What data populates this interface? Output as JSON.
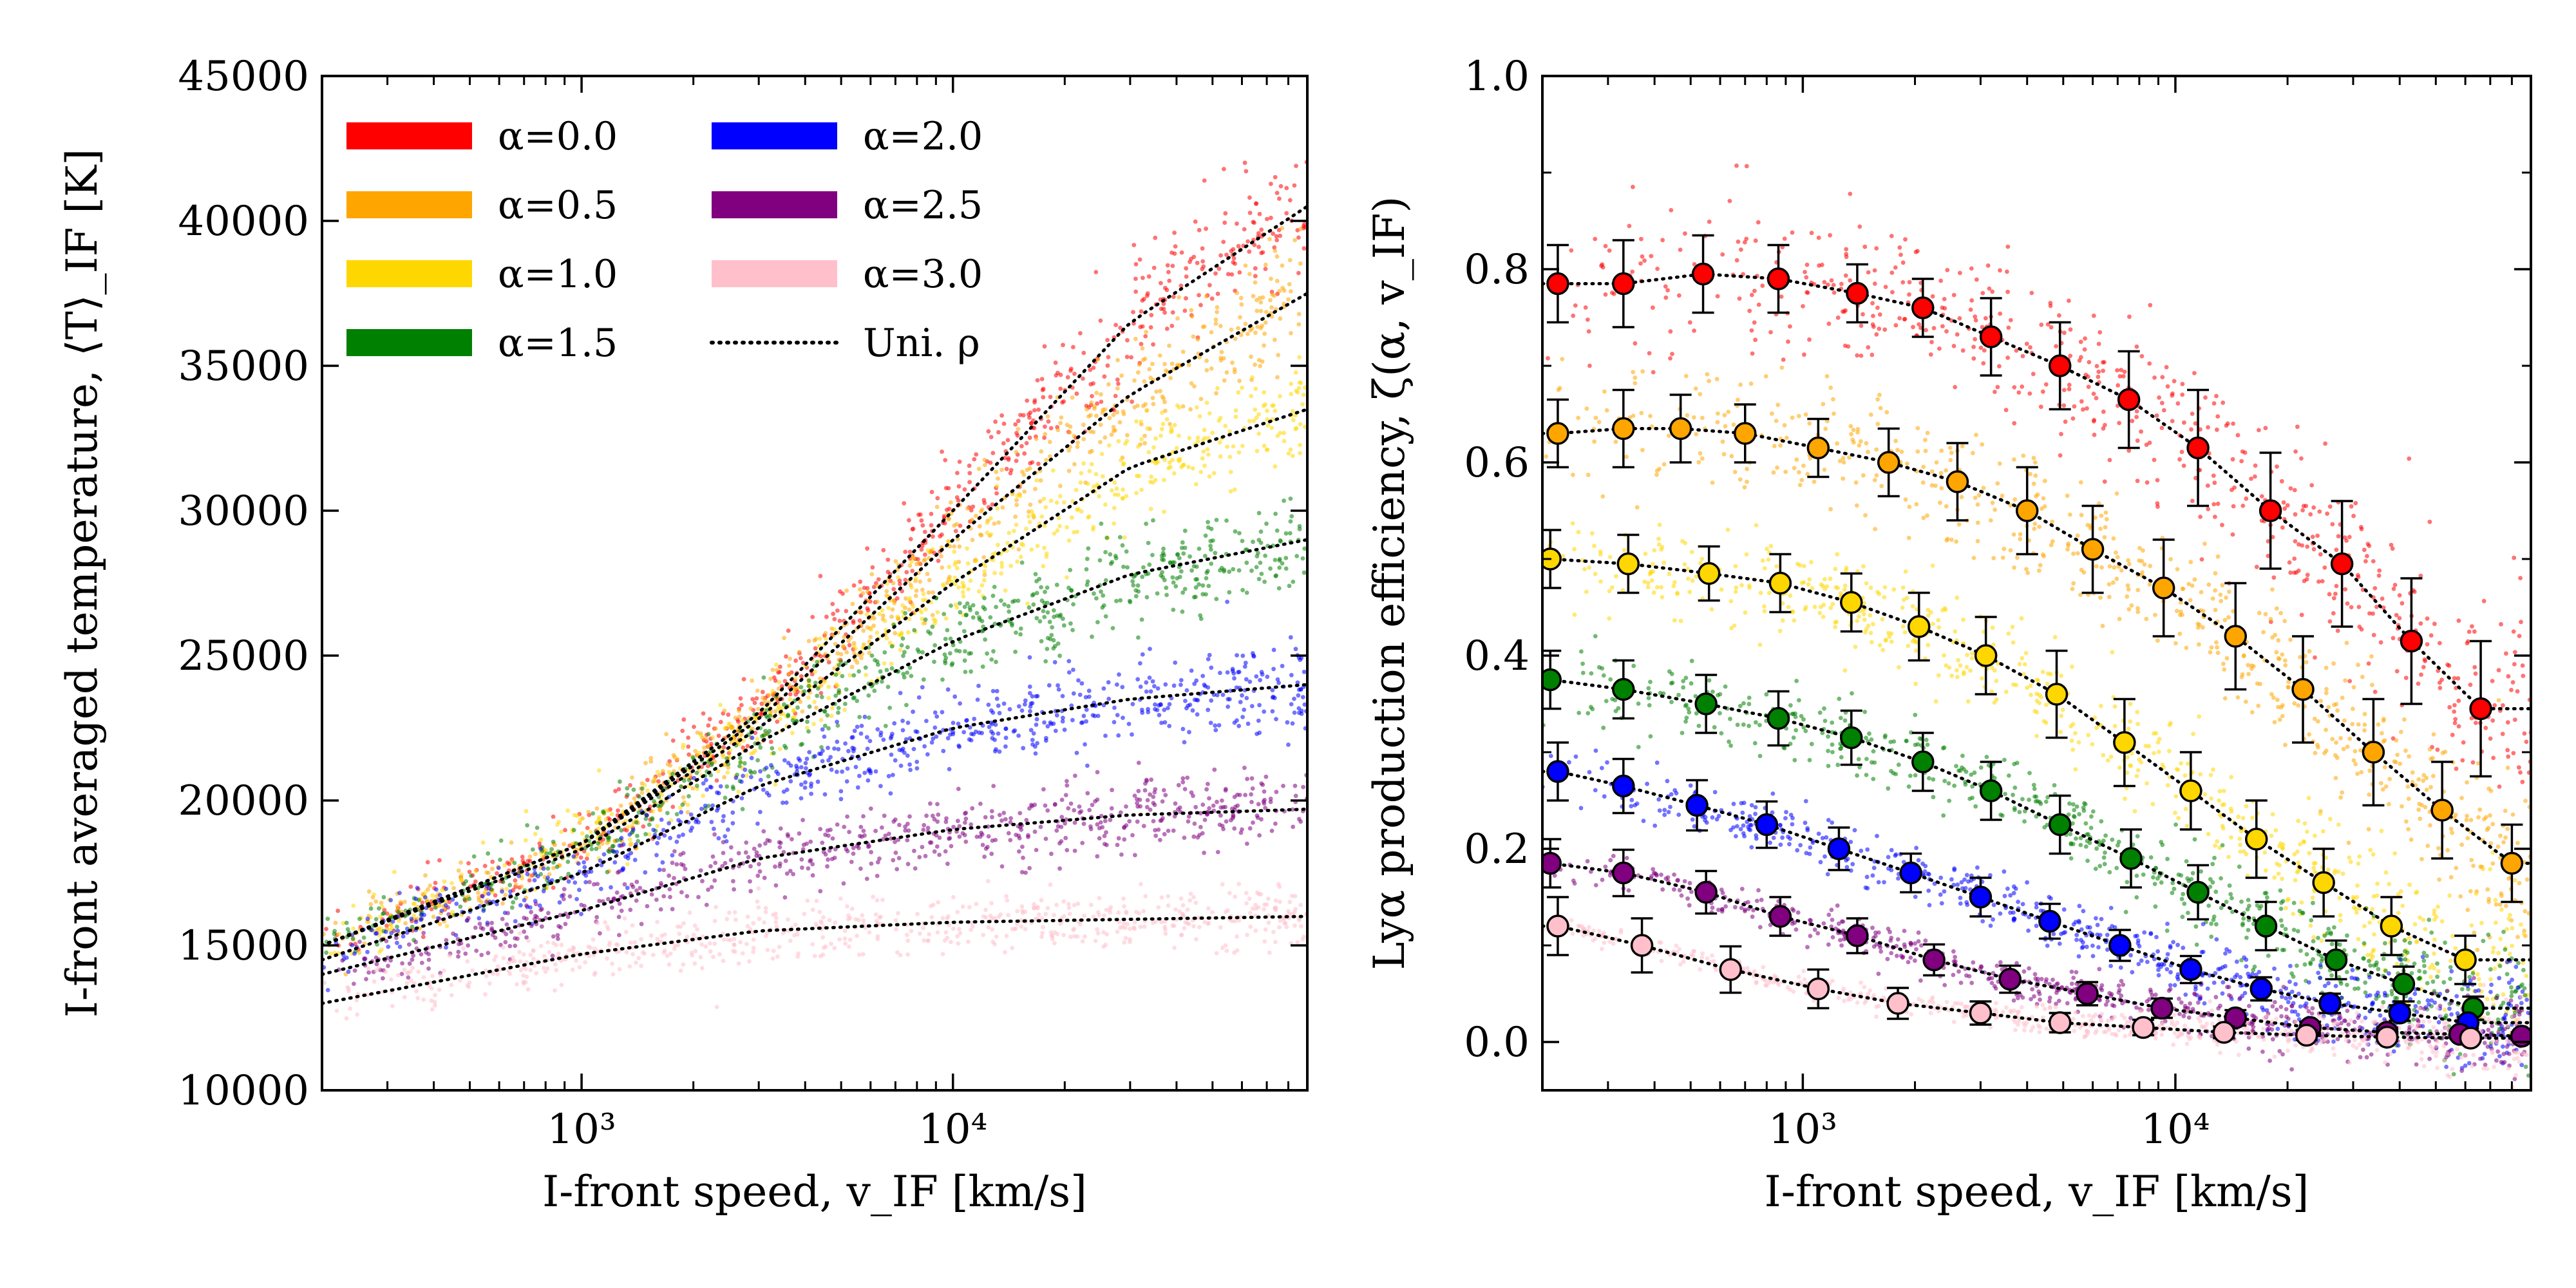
{
  "chart_data": [
    {
      "type": "scatter",
      "title": "",
      "xlabel": "I-front speed, v_IF [km/s]",
      "ylabel": "I-front averaged temperature, ⟨T⟩_IF [K]",
      "xscale": "log",
      "xlim": [
        200,
        90000
      ],
      "ylim": [
        10000,
        45000
      ],
      "yticks": [
        10000,
        15000,
        20000,
        25000,
        30000,
        35000,
        40000,
        45000
      ],
      "ytick_labels": [
        "10000",
        "15000",
        "20000",
        "25000",
        "30000",
        "35000",
        "40000",
        "45000"
      ],
      "xticks": [
        1000,
        10000
      ],
      "xtick_labels": [
        "10³",
        "10⁴"
      ],
      "grid": false,
      "legend_position": "top-left",
      "legend": [
        {
          "label": "α=0.0",
          "color": "#ff0000",
          "style": "band"
        },
        {
          "label": "α=0.5",
          "color": "#ffa500",
          "style": "band"
        },
        {
          "label": "α=1.0",
          "color": "#ffd700",
          "style": "band"
        },
        {
          "label": "α=1.5",
          "color": "#008000",
          "style": "band"
        },
        {
          "label": "α=2.0",
          "color": "#0000ff",
          "style": "band"
        },
        {
          "label": "α=2.5",
          "color": "#800080",
          "style": "band"
        },
        {
          "label": "α=3.0",
          "color": "#ffc0cb",
          "style": "band"
        },
        {
          "label": "Uni. ρ",
          "color": "#000000",
          "style": "dotted"
        }
      ],
      "series": [
        {
          "name": "α=0.0",
          "color": "#ff0000",
          "x": [
            200,
            1000,
            3000,
            10000,
            30000,
            90000
          ],
          "y": [
            15000,
            18500,
            23000,
            30000,
            36500,
            40500
          ]
        },
        {
          "name": "α=0.5",
          "color": "#ffa500",
          "x": [
            200,
            1000,
            3000,
            10000,
            30000,
            90000
          ],
          "y": [
            15000,
            18500,
            22800,
            29000,
            34000,
            37500
          ]
        },
        {
          "name": "α=1.0",
          "color": "#ffd700",
          "x": [
            200,
            1000,
            3000,
            10000,
            30000,
            90000
          ],
          "y": [
            15000,
            18500,
            22500,
            27500,
            31500,
            33500
          ]
        },
        {
          "name": "α=1.5",
          "color": "#008000",
          "x": [
            200,
            1000,
            3000,
            10000,
            30000,
            90000
          ],
          "y": [
            15000,
            18300,
            22000,
            25500,
            27800,
            29000
          ]
        },
        {
          "name": "α=2.0",
          "color": "#0000ff",
          "x": [
            200,
            1000,
            3000,
            10000,
            30000,
            90000
          ],
          "y": [
            14500,
            17500,
            20500,
            22500,
            23500,
            24000
          ]
        },
        {
          "name": "α=2.5",
          "color": "#800080",
          "x": [
            200,
            1000,
            3000,
            10000,
            30000,
            90000
          ],
          "y": [
            14000,
            16200,
            18000,
            19000,
            19500,
            19700
          ]
        },
        {
          "name": "α=3.0",
          "color": "#ffc0cb",
          "x": [
            200,
            1000,
            3000,
            10000,
            30000,
            90000
          ],
          "y": [
            13000,
            14700,
            15500,
            15800,
            15900,
            16000
          ]
        }
      ]
    },
    {
      "type": "scatter",
      "title": "",
      "xlabel": "I-front speed, v_IF [km/s]",
      "ylabel": "Lyα production efficiency, ζ(α, v_IF)",
      "xscale": "log",
      "xlim": [
        200,
        90000
      ],
      "ylim": [
        -0.05,
        1.0
      ],
      "yticks": [
        0.0,
        0.2,
        0.4,
        0.6,
        0.8,
        1.0
      ],
      "ytick_labels": [
        "0.0",
        "0.2",
        "0.4",
        "0.6",
        "0.8",
        "1.0"
      ],
      "xticks": [
        1000,
        10000
      ],
      "xtick_labels": [
        "10³",
        "10⁴"
      ],
      "grid": false,
      "series": [
        {
          "name": "α=0.0",
          "color": "#ff0000",
          "x": [
            220,
            330,
            540,
            860,
            1400,
            2100,
            3200,
            4900,
            7500,
            11500,
            18000,
            28000,
            43000,
            66000
          ],
          "y": [
            0.785,
            0.785,
            0.795,
            0.79,
            0.775,
            0.76,
            0.73,
            0.7,
            0.665,
            0.615,
            0.55,
            0.495,
            0.415,
            0.345
          ],
          "err": [
            0.04,
            0.045,
            0.04,
            0.035,
            0.03,
            0.03,
            0.04,
            0.045,
            0.05,
            0.06,
            0.06,
            0.065,
            0.065,
            0.07
          ]
        },
        {
          "name": "α=0.5",
          "color": "#ffa500",
          "x": [
            220,
            330,
            470,
            700,
            1100,
            1700,
            2600,
            4000,
            6000,
            9300,
            14500,
            22000,
            34000,
            52000,
            80000
          ],
          "y": [
            0.63,
            0.635,
            0.635,
            0.63,
            0.615,
            0.6,
            0.58,
            0.55,
            0.51,
            0.47,
            0.42,
            0.365,
            0.3,
            0.24,
            0.185
          ],
          "err": [
            0.035,
            0.04,
            0.035,
            0.03,
            0.03,
            0.035,
            0.04,
            0.045,
            0.045,
            0.05,
            0.055,
            0.055,
            0.055,
            0.05,
            0.04
          ]
        },
        {
          "name": "α=1.0",
          "color": "#ffd700",
          "x": [
            210,
            340,
            560,
            870,
            1350,
            2050,
            3100,
            4800,
            7300,
            11000,
            16500,
            25000,
            38000,
            60000
          ],
          "y": [
            0.5,
            0.495,
            0.485,
            0.475,
            0.455,
            0.43,
            0.4,
            0.36,
            0.31,
            0.26,
            0.21,
            0.165,
            0.12,
            0.085
          ],
          "err": [
            0.03,
            0.03,
            0.028,
            0.03,
            0.03,
            0.035,
            0.04,
            0.045,
            0.045,
            0.04,
            0.04,
            0.035,
            0.03,
            0.025
          ]
        },
        {
          "name": "α=1.5",
          "color": "#008000",
          "x": [
            210,
            330,
            550,
            860,
            1350,
            2100,
            3200,
            4900,
            7600,
            11500,
            17500,
            27000,
            41000,
            63000
          ],
          "y": [
            0.375,
            0.365,
            0.35,
            0.335,
            0.315,
            0.29,
            0.26,
            0.225,
            0.19,
            0.155,
            0.12,
            0.085,
            0.06,
            0.035
          ],
          "err": [
            0.03,
            0.03,
            0.03,
            0.028,
            0.028,
            0.03,
            0.03,
            0.03,
            0.03,
            0.028,
            0.025,
            0.02,
            0.018,
            0.012
          ]
        },
        {
          "name": "α=2.0",
          "color": "#0000ff",
          "x": [
            220,
            330,
            520,
            800,
            1250,
            1950,
            3000,
            4600,
            7100,
            11000,
            17000,
            26000,
            40000,
            61000
          ],
          "y": [
            0.28,
            0.265,
            0.245,
            0.225,
            0.2,
            0.175,
            0.15,
            0.125,
            0.1,
            0.075,
            0.055,
            0.04,
            0.03,
            0.02
          ],
          "err": [
            0.03,
            0.028,
            0.026,
            0.024,
            0.022,
            0.02,
            0.02,
            0.018,
            0.016,
            0.014,
            0.012,
            0.01,
            0.008,
            0.006
          ]
        },
        {
          "name": "α=2.5",
          "color": "#800080",
          "x": [
            210,
            330,
            550,
            870,
            1400,
            2250,
            3600,
            5800,
            9200,
            14500,
            23000,
            37000,
            58000,
            85000
          ],
          "y": [
            0.185,
            0.175,
            0.155,
            0.13,
            0.11,
            0.085,
            0.065,
            0.05,
            0.035,
            0.025,
            0.015,
            0.01,
            0.008,
            0.006
          ],
          "err": [
            0.025,
            0.024,
            0.022,
            0.02,
            0.018,
            0.016,
            0.014,
            0.012,
            0.01,
            0.008,
            0.006,
            0.005,
            0.004,
            0.004
          ]
        },
        {
          "name": "α=3.0",
          "color": "#ffc0cb",
          "x": [
            220,
            370,
            640,
            1100,
            1800,
            3000,
            4900,
            8200,
            13500,
            22500,
            37000,
            62000
          ],
          "y": [
            0.12,
            0.1,
            0.075,
            0.055,
            0.04,
            0.03,
            0.02,
            0.015,
            0.01,
            0.007,
            0.005,
            0.004
          ],
          "err": [
            0.03,
            0.028,
            0.024,
            0.02,
            0.016,
            0.012,
            0.01,
            0.008,
            0.006,
            0.005,
            0.004,
            0.003
          ]
        }
      ]
    }
  ]
}
